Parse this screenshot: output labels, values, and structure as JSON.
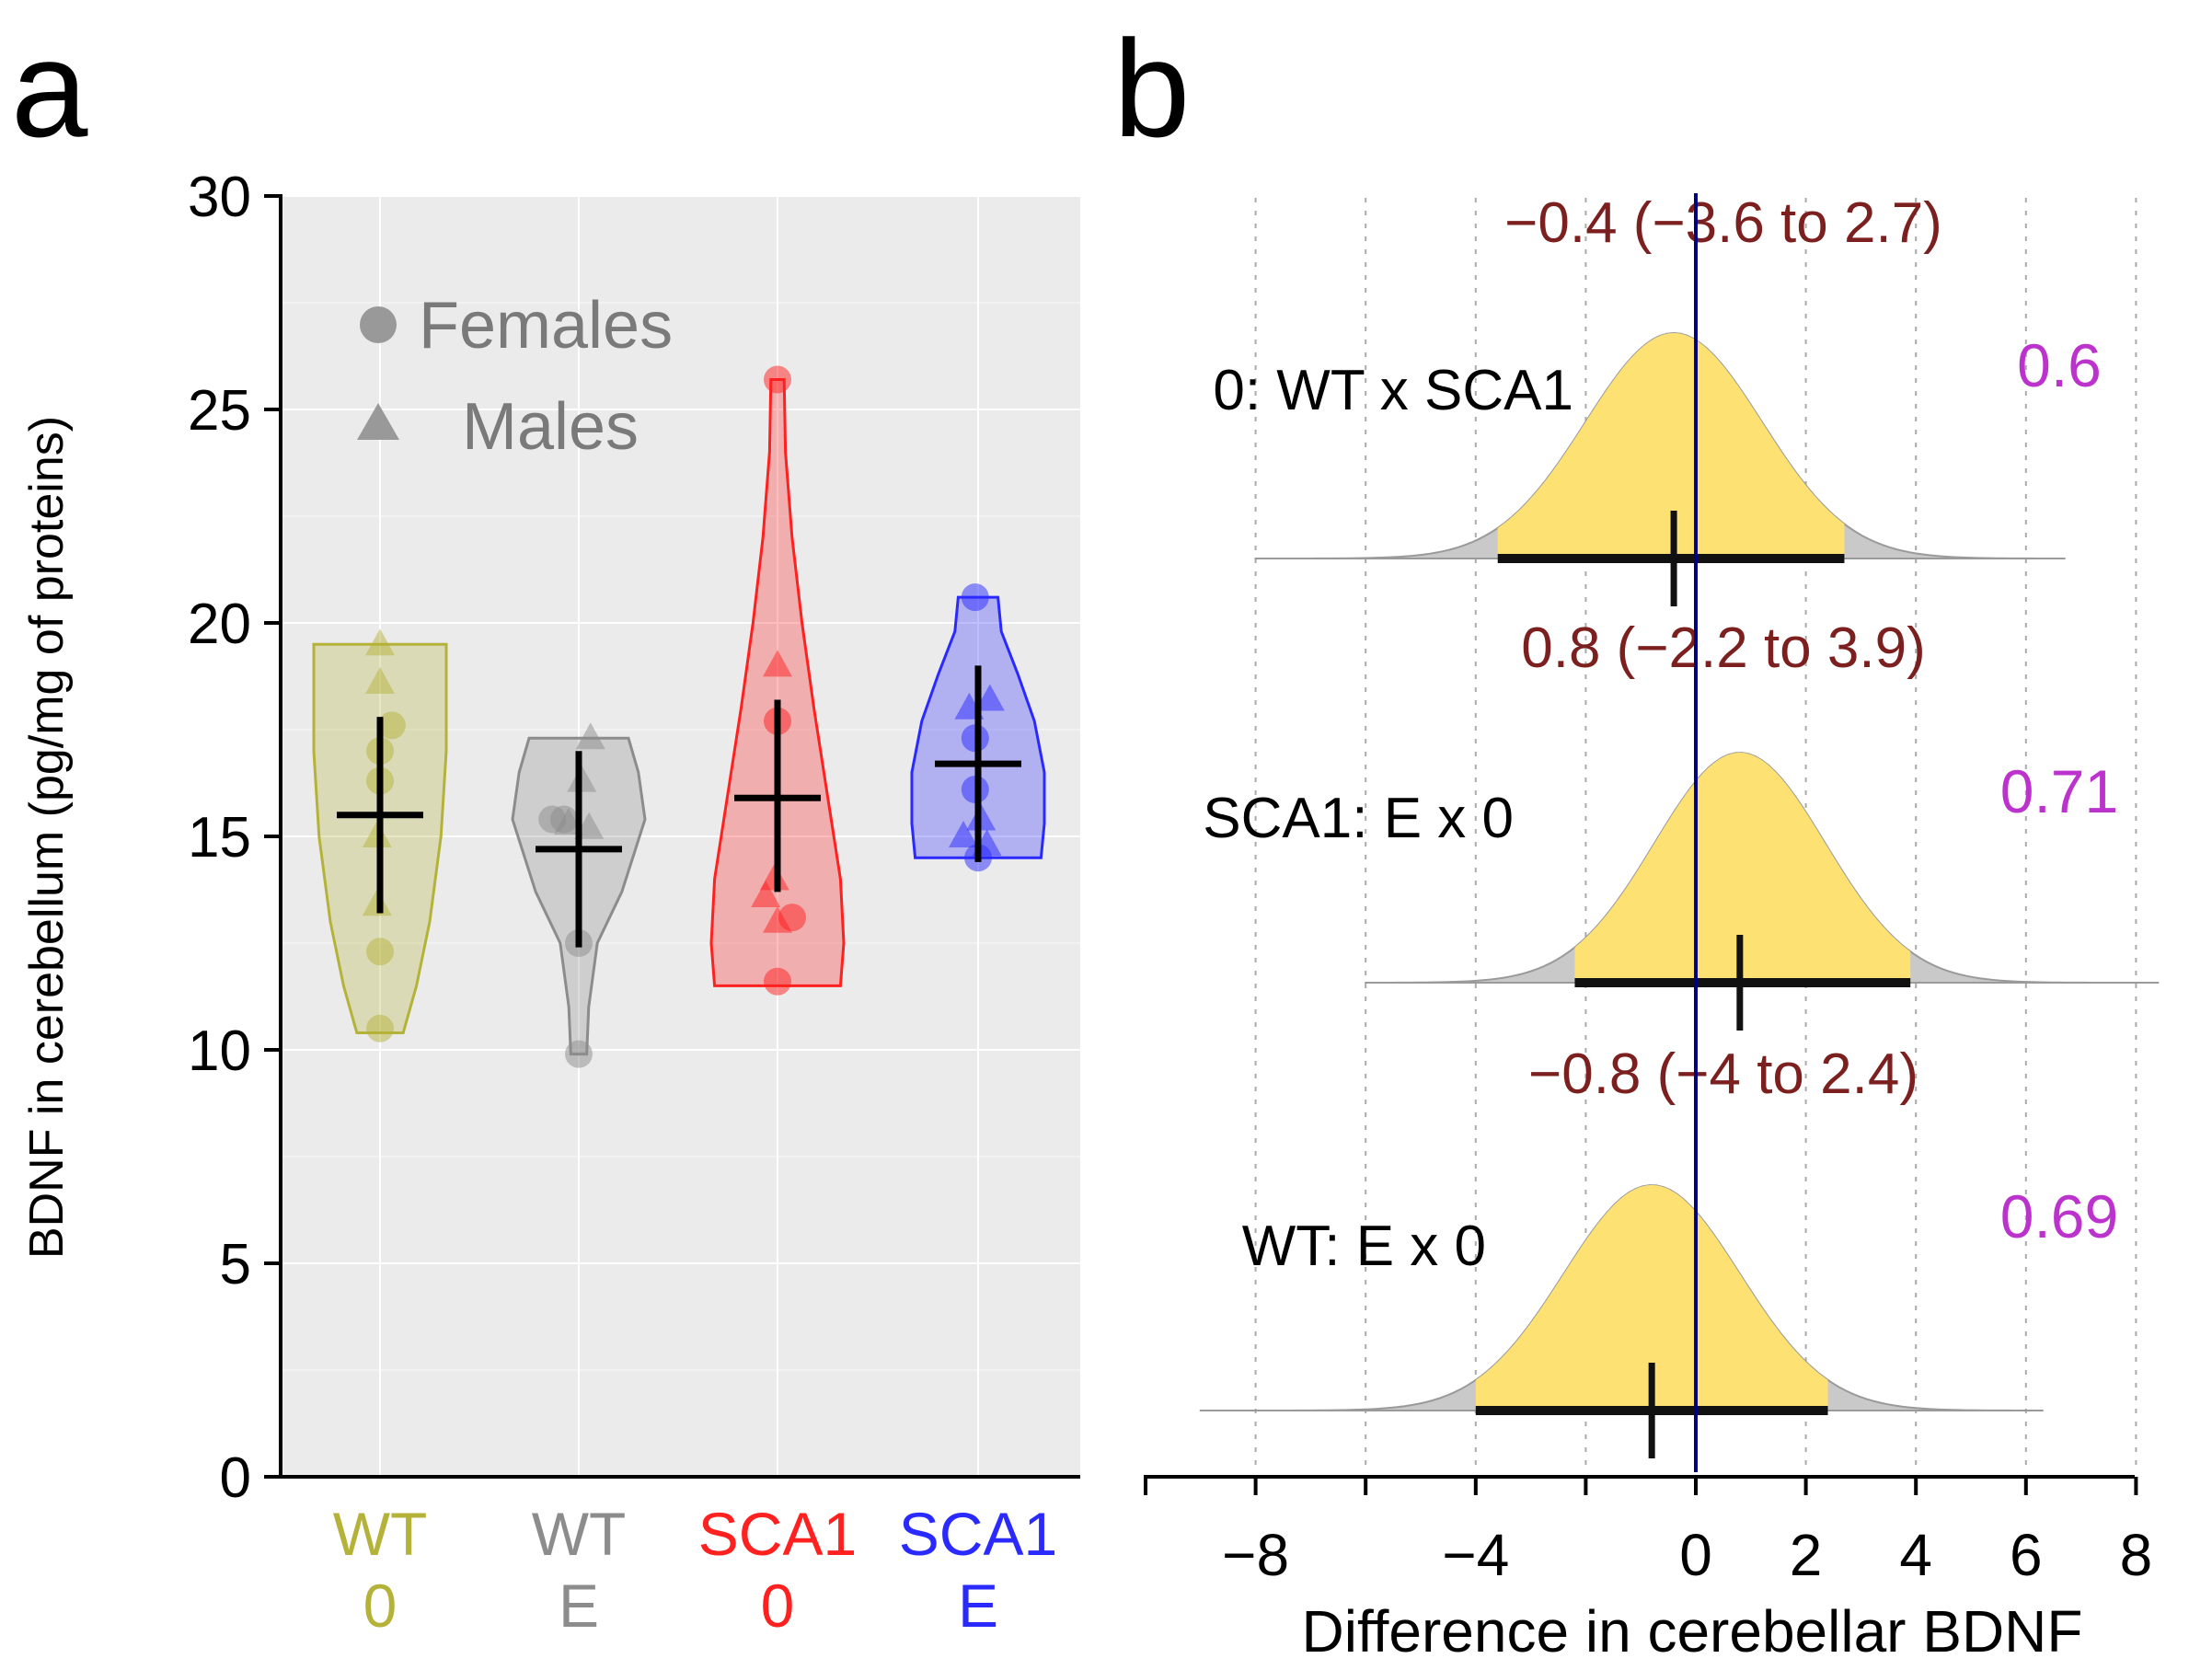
{
  "panels": {
    "a_label": "a",
    "b_label": "b"
  },
  "chart_data": [
    {
      "panel": "a",
      "type": "violin",
      "title": "",
      "ylabel": "BDNF in cerebellum (pg/mg of proteins)",
      "xlabel": "",
      "ylim": [
        0,
        30
      ],
      "yticks": [
        0,
        5,
        10,
        15,
        20,
        25,
        30
      ],
      "grid": true,
      "legend": {
        "position": "top-left",
        "entries": [
          {
            "label": "Females",
            "shape": "circle"
          },
          {
            "label": "Males",
            "shape": "triangle"
          }
        ]
      },
      "groups": [
        {
          "line1": "WT",
          "line2": "0",
          "color": "#b5b23a",
          "min": 10.4,
          "max": 19.5,
          "mean": 15.5,
          "ci": [
            13.2,
            17.8
          ],
          "profile": [
            [
              10.4,
              0.35
            ],
            [
              11.5,
              0.55
            ],
            [
              13,
              0.75
            ],
            [
              15,
              0.92
            ],
            [
              17,
              1
            ],
            [
              19.5,
              1
            ]
          ],
          "points": [
            {
              "y": 10.5,
              "sex": "F",
              "dx": 0.0
            },
            {
              "y": 12.3,
              "sex": "F",
              "dx": 0.0
            },
            {
              "y": 16.3,
              "sex": "F",
              "dx": 0.0
            },
            {
              "y": 17.0,
              "sex": "F",
              "dx": 0.0
            },
            {
              "y": 17.6,
              "sex": "F",
              "dx": 0.4
            },
            {
              "y": 13.4,
              "sex": "M",
              "dx": -0.1
            },
            {
              "y": 15.0,
              "sex": "M",
              "dx": -0.1
            },
            {
              "y": 18.6,
              "sex": "M",
              "dx": 0.0
            },
            {
              "y": 19.5,
              "sex": "M",
              "dx": 0.0
            }
          ]
        },
        {
          "line1": "WT",
          "line2": "E",
          "color": "#8c8c8c",
          "min": 9.9,
          "max": 17.3,
          "mean": 14.7,
          "ci": [
            12.4,
            17.0
          ],
          "profile": [
            [
              9.9,
              0.12
            ],
            [
              11,
              0.15
            ],
            [
              12.5,
              0.28
            ],
            [
              13.7,
              0.65
            ],
            [
              15.4,
              1
            ],
            [
              16.5,
              0.9
            ],
            [
              17.3,
              0.75
            ]
          ],
          "points": [
            {
              "y": 9.9,
              "sex": "F",
              "dx": 0.0
            },
            {
              "y": 12.5,
              "sex": "F",
              "dx": 0.0
            },
            {
              "y": 15.4,
              "sex": "F",
              "dx": -0.9
            },
            {
              "y": 15.4,
              "sex": "F",
              "dx": -0.5
            },
            {
              "y": 15.3,
              "sex": "M",
              "dx": -0.35
            },
            {
              "y": 15.2,
              "sex": "M",
              "dx": 0.35
            },
            {
              "y": 16.3,
              "sex": "M",
              "dx": 0.1
            },
            {
              "y": 17.3,
              "sex": "M",
              "dx": 0.4
            }
          ]
        },
        {
          "line1": "SCA1",
          "line2": "0",
          "color": "#ff2020",
          "min": 11.5,
          "max": 25.7,
          "mean": 15.9,
          "ci": [
            13.7,
            18.2
          ],
          "profile": [
            [
              11.5,
              0.95
            ],
            [
              12.5,
              1
            ],
            [
              14,
              0.95
            ],
            [
              16,
              0.75
            ],
            [
              18,
              0.55
            ],
            [
              20,
              0.37
            ],
            [
              22,
              0.22
            ],
            [
              24,
              0.12
            ],
            [
              25.7,
              0.1
            ]
          ],
          "points": [
            {
              "y": 11.6,
              "sex": "F",
              "dx": 0.0
            },
            {
              "y": 13.1,
              "sex": "F",
              "dx": 0.5
            },
            {
              "y": 17.7,
              "sex": "F",
              "dx": 0.0
            },
            {
              "y": 25.7,
              "sex": "F",
              "dx": 0.0
            },
            {
              "y": 13.0,
              "sex": "M",
              "dx": 0.0
            },
            {
              "y": 13.6,
              "sex": "M",
              "dx": -0.4
            },
            {
              "y": 14.0,
              "sex": "M",
              "dx": -0.1
            },
            {
              "y": 19.0,
              "sex": "M",
              "dx": 0.0
            }
          ]
        },
        {
          "line1": "SCA1",
          "line2": "E",
          "color": "#2a2aff",
          "min": 14.5,
          "max": 20.6,
          "mean": 16.7,
          "ci": [
            14.4,
            19.0
          ],
          "profile": [
            [
              14.5,
              0.95
            ],
            [
              15.3,
              1
            ],
            [
              16.5,
              1
            ],
            [
              17.7,
              0.85
            ],
            [
              18.8,
              0.6
            ],
            [
              19.8,
              0.35
            ],
            [
              20.6,
              0.3
            ]
          ],
          "points": [
            {
              "y": 14.5,
              "sex": "F",
              "dx": 0.0
            },
            {
              "y": 16.1,
              "sex": "F",
              "dx": -0.1
            },
            {
              "y": 17.3,
              "sex": "F",
              "dx": -0.1
            },
            {
              "y": 20.6,
              "sex": "F",
              "dx": -0.1
            },
            {
              "y": 14.8,
              "sex": "M",
              "dx": 0.3
            },
            {
              "y": 15.0,
              "sex": "M",
              "dx": -0.5
            },
            {
              "y": 15.4,
              "sex": "M",
              "dx": 0.1
            },
            {
              "y": 18.2,
              "sex": "M",
              "dx": 0.4
            },
            {
              "y": 18.0,
              "sex": "M",
              "dx": -0.3
            }
          ]
        }
      ]
    },
    {
      "panel": "b",
      "type": "density",
      "title": "",
      "xlabel": "Difference in cerebellar BDNF",
      "xlim": [
        -10,
        8.3
      ],
      "xticks": [
        -8,
        -4,
        0,
        2,
        4,
        6,
        8
      ],
      "xtick_labels": [
        "−8",
        "−4",
        "0",
        "2",
        "4",
        "6",
        "8"
      ],
      "vline": 0,
      "fill_color": "#fde172",
      "tail_color": "#c9c9c9",
      "comparisons": [
        {
          "label": "0: WT x SCA1",
          "estimate": -0.4,
          "ci": [
            -3.6,
            2.7
          ],
          "interval_text": "−0.4 (−3.6 to 2.7)",
          "prob": "0.6",
          "sd": 1.6,
          "range": [
            -8.0,
            6.7
          ]
        },
        {
          "label": "SCA1: E x 0",
          "estimate": 0.8,
          "ci": [
            -2.2,
            3.9
          ],
          "interval_text": "0.8 (−2.2 to 3.9)",
          "prob": "0.71",
          "sd": 1.55,
          "range": [
            -6.0,
            8.4
          ]
        },
        {
          "label": "WT: E x 0",
          "estimate": -0.8,
          "ci": [
            -4.0,
            2.4
          ],
          "interval_text": "−0.8 (−4 to 2.4)",
          "prob": "0.69",
          "sd": 1.6,
          "range": [
            -9.0,
            6.3
          ]
        }
      ]
    }
  ]
}
